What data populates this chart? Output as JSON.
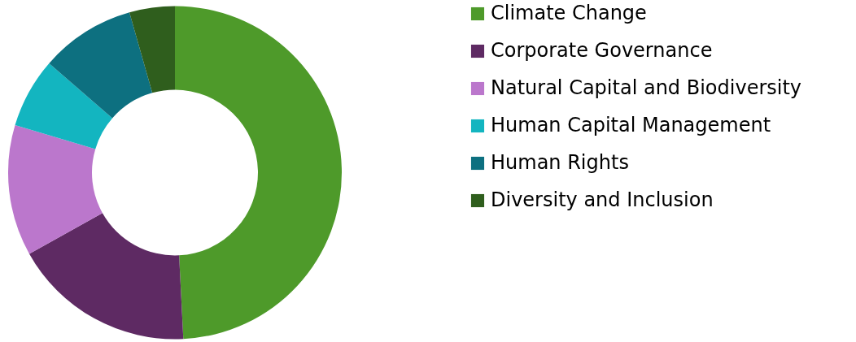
{
  "chart_data": {
    "type": "donut",
    "categories": [
      "Climate Change",
      "Corporate Governance",
      "Natural Capital and Biodiversity",
      "Human Capital Management",
      "Human Rights",
      "Diversity and Inclusion"
    ],
    "values": [
      49.2,
      17.7,
      12.7,
      6.8,
      9.2,
      4.4
    ],
    "colors": [
      "#4e9a2a",
      "#5e2a63",
      "#bb77cc",
      "#13b5c0",
      "#0d7080",
      "#2f5e1d"
    ],
    "legend": "right"
  }
}
